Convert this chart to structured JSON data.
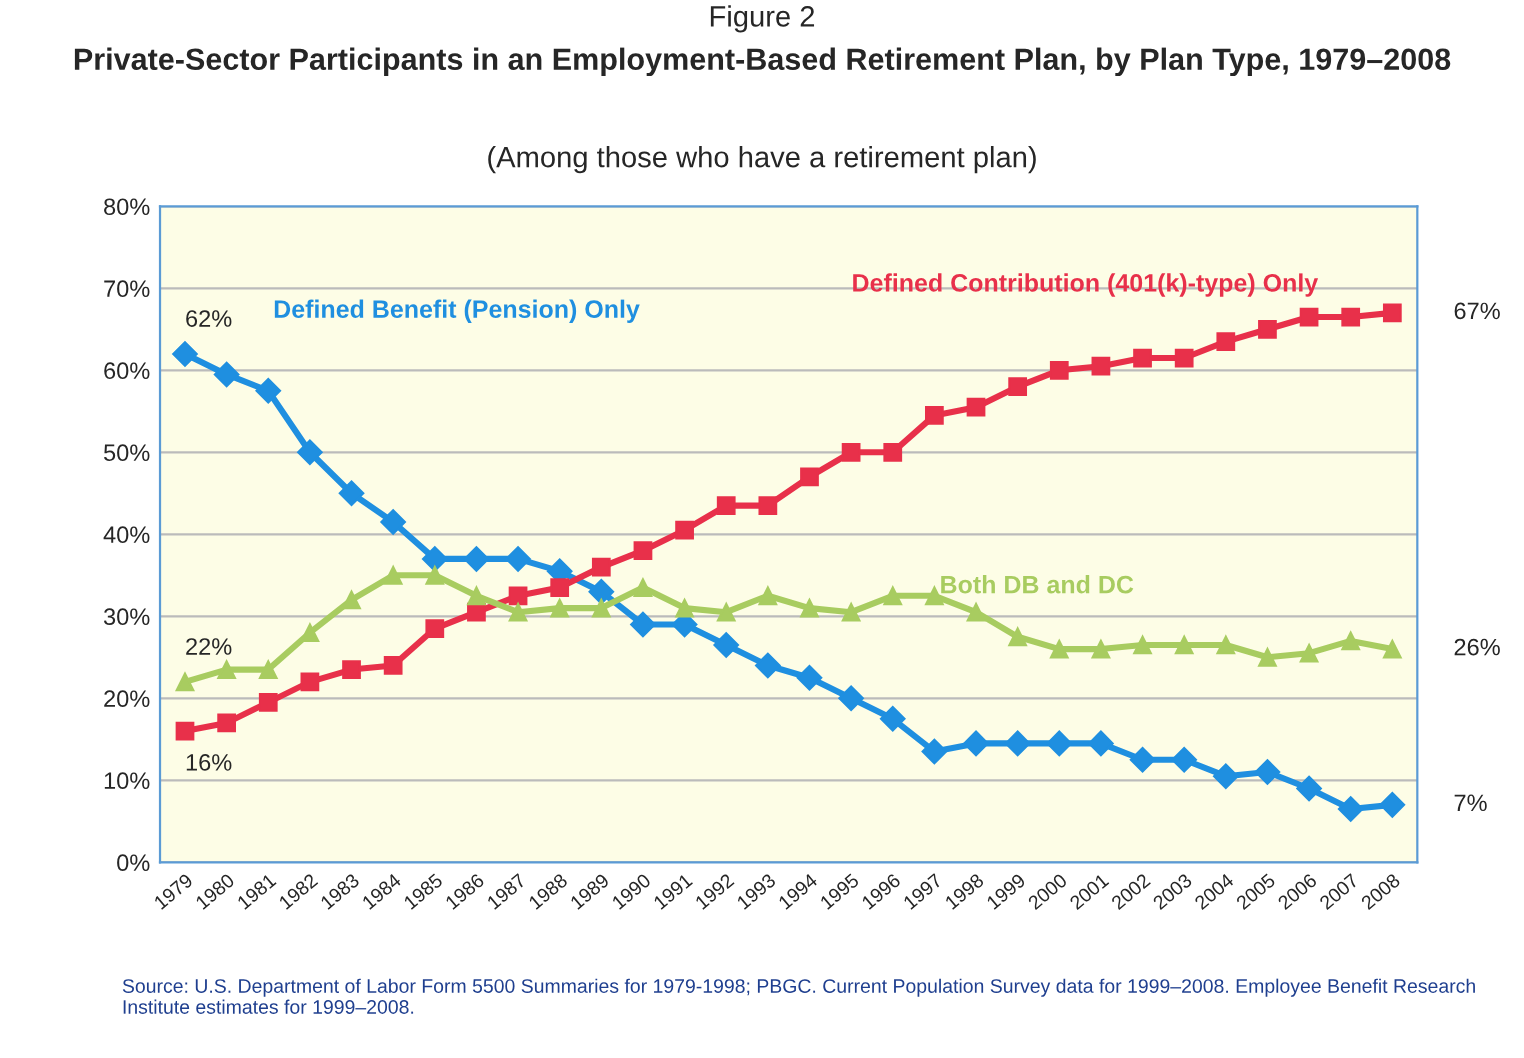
{
  "chart_data": {
    "type": "line",
    "title": "Private-Sector Participants in an Employment-Based Retirement Plan, by Plan Type, 1979–2008",
    "subtitle": "(Among those who have a retirement plan)",
    "categories": [
      "1979",
      "1980",
      "1981",
      "1982",
      "1983",
      "1984",
      "1985",
      "1986",
      "1987",
      "1988",
      "1989",
      "1990",
      "1991",
      "1992",
      "1993",
      "1994",
      "1995",
      "1996",
      "1997",
      "1998",
      "1999",
      "2000",
      "2001",
      "2002",
      "2003",
      "2004",
      "2005",
      "2006",
      "2007",
      "2008"
    ],
    "series": [
      {
        "name": "Defined Benefit (Pension) Only",
        "color": "#1f8fe0",
        "marker": "diamond",
        "values": [
          62,
          59.5,
          57.5,
          50,
          45,
          41.5,
          37,
          37,
          37,
          35.5,
          33,
          29,
          29,
          26.5,
          24,
          22.5,
          20,
          17.5,
          13.5,
          14.5,
          14.5,
          14.5,
          14.5,
          12.5,
          12.5,
          10.5,
          11,
          9,
          6.5,
          7
        ]
      },
      {
        "name": "Defined Contribution (401(k)-type) Only",
        "color": "#e8304a",
        "marker": "square",
        "values": [
          16,
          17,
          19.5,
          22,
          23.5,
          24,
          28.5,
          30.5,
          32.5,
          33.5,
          36,
          38,
          40.5,
          43.5,
          43.5,
          47,
          50,
          50,
          54.5,
          55.5,
          58,
          60,
          60.5,
          61.5,
          61.5,
          63.5,
          65,
          66.5,
          66.5,
          67
        ]
      },
      {
        "name": "Both DB and DC",
        "color": "#a8cc60",
        "marker": "triangle",
        "values": [
          22,
          23.5,
          23.5,
          28,
          32,
          35,
          35,
          32.5,
          30.5,
          31,
          31,
          33.5,
          31,
          30.5,
          32.5,
          31,
          30.5,
          32.5,
          32.5,
          30.5,
          27.5,
          26,
          26,
          26.5,
          26.5,
          26.5,
          25,
          25.5,
          27,
          26
        ]
      }
    ],
    "ylim": [
      0,
      80
    ],
    "yticks": [
      {
        "value": 0,
        "label": "0%"
      },
      {
        "value": 10,
        "label": "10%"
      },
      {
        "value": 20,
        "label": "20%"
      },
      {
        "value": 30,
        "label": "30%"
      },
      {
        "value": 40,
        "label": "40%"
      },
      {
        "value": 50,
        "label": "50%"
      },
      {
        "value": 60,
        "label": "60%"
      },
      {
        "value": 70,
        "label": "70%"
      },
      {
        "value": 80,
        "label": "80%"
      }
    ],
    "grid": "y",
    "legend": false,
    "annotations": [
      "Figure 2",
      {
        "text": "62%",
        "x": "1979",
        "y": 62
      },
      {
        "text": "22%",
        "x": "1979",
        "y": 22
      },
      {
        "text": "16%",
        "x": "1979",
        "y": 16
      },
      {
        "text": "67%",
        "x": "2008",
        "y": 67
      },
      {
        "text": "26%",
        "x": "2008",
        "y": 26
      },
      {
        "text": "7%",
        "x": "2008",
        "y": 7
      },
      "Source: U.S. Department of Labor Form 5500 Summaries for 1979-1998; PBGC. Current Population Survey data for 1999–2008. Employee Benefit Research Institute estimates for 1999–2008."
    ]
  }
}
